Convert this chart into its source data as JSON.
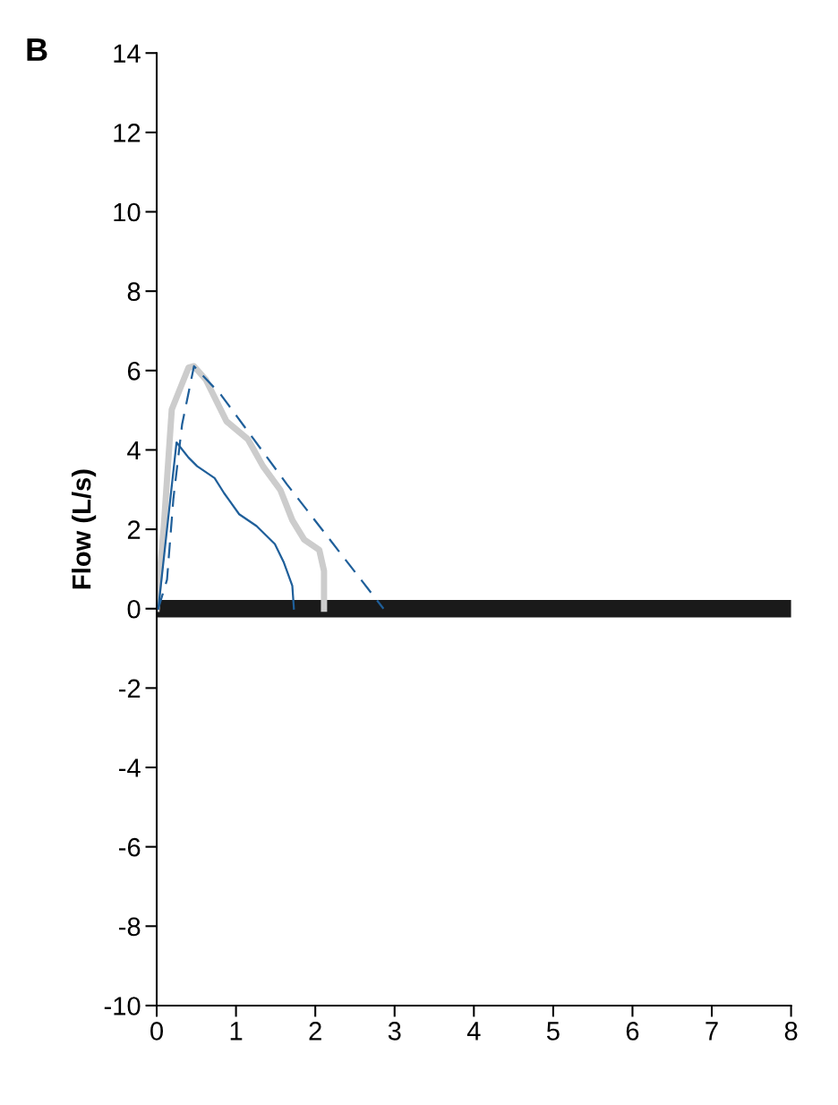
{
  "chart_data": {
    "type": "line",
    "title": "B",
    "ylabel": "Flow (L/s)",
    "xlim": [
      0,
      8
    ],
    "xticks": [
      0,
      1,
      2,
      3,
      4,
      5,
      6,
      7,
      8
    ],
    "ylim": [
      -10,
      14
    ],
    "yticks": [
      -10,
      -8,
      -6,
      -4,
      -2,
      0,
      2,
      4,
      6,
      8,
      10,
      12,
      14
    ],
    "grid": false,
    "legend": false,
    "ref_lines": [
      {
        "axis": "y",
        "value": 0,
        "color": "#1a1a1a"
      }
    ],
    "series": [
      {
        "color": "#cccccc",
        "line_style": "solid",
        "x": [
          0,
          0.09,
          0.19,
          0.4,
          0.47,
          0.62,
          0.88,
          1.15,
          1.34,
          1.56,
          1.71,
          1.86,
          2.05,
          2.11,
          2.11
        ],
        "values": [
          0,
          2.08,
          5.02,
          6.07,
          6.11,
          5.77,
          4.72,
          4.27,
          3.59,
          2.99,
          2.23,
          1.74,
          1.48,
          0.95,
          0
        ]
      },
      {
        "color": "#1f5f9a",
        "line_style": "dashed",
        "x": [
          0.02,
          0.13,
          0.21,
          0.32,
          0.47,
          0.81,
          1.64,
          2.86
        ],
        "values": [
          0,
          0.73,
          2.76,
          4.64,
          6.11,
          5.39,
          3.14,
          0
        ]
      },
      {
        "color": "#1f5f9a",
        "line_style": "solid",
        "x": [
          0.02,
          0.25,
          0.4,
          0.51,
          0.73,
          0.85,
          1.04,
          1.26,
          1.49,
          1.6,
          1.71,
          1.73
        ],
        "values": [
          0,
          4.19,
          3.81,
          3.59,
          3.29,
          2.91,
          2.38,
          2.08,
          1.63,
          1.18,
          0.58,
          0
        ]
      }
    ]
  }
}
